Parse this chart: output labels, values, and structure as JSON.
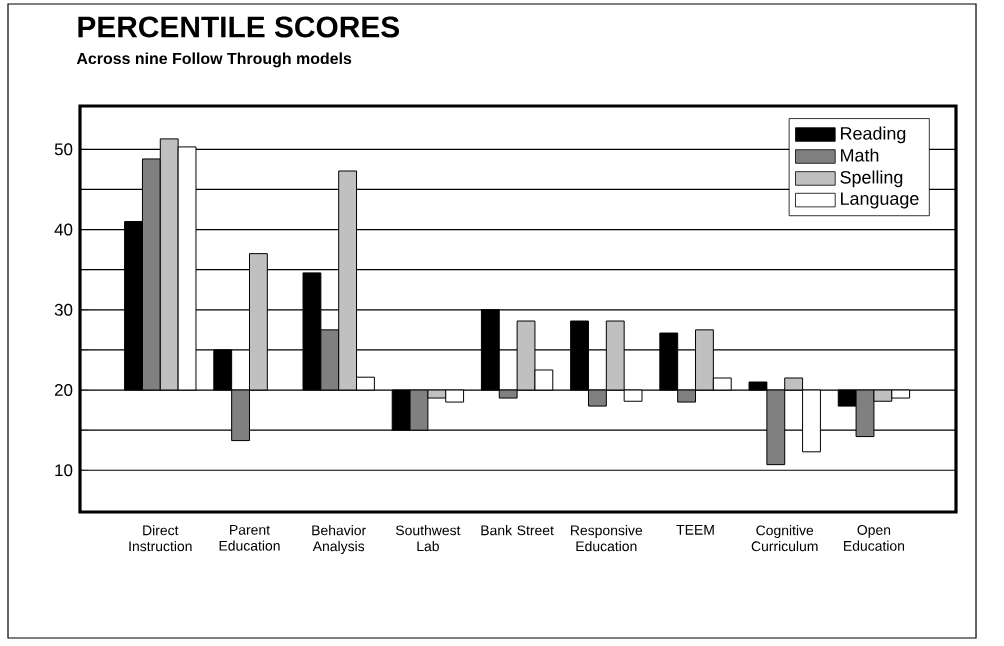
{
  "chart_data": {
    "type": "bar",
    "title": "PERCENTILE SCORES",
    "subtitle": "Across nine Follow Through models",
    "categories": [
      "Direct Instruction",
      "Parent Education",
      "Behavior Analysis",
      "Southwest Lab",
      "Bank Street",
      "Responsive Education",
      "TEEM",
      "Cognitive Curriculum",
      "Open Education"
    ],
    "series": [
      {
        "name": "Reading",
        "color": "#000000",
        "base": [
          20,
          20,
          20,
          20,
          20,
          20,
          20,
          20,
          20
        ],
        "values": [
          21,
          5,
          14.6,
          -5,
          10,
          8.6,
          7.1,
          1,
          -2
        ]
      },
      {
        "name": "Math",
        "color": "#808080",
        "base": [
          20,
          20,
          20,
          20,
          20,
          20,
          20,
          20,
          20
        ],
        "values": [
          28.8,
          -6.3,
          7.5,
          -5,
          -1,
          -2,
          -1.5,
          -9.3,
          -5.8
        ]
      },
      {
        "name": "Spelling",
        "color": "#c0c0c0",
        "base": [
          20,
          20,
          20,
          20,
          20,
          20,
          20,
          20,
          20
        ],
        "values": [
          31.3,
          17,
          27.3,
          -1,
          8.6,
          8.6,
          7.5,
          1.5,
          -1.4
        ]
      },
      {
        "name": "Language",
        "color": "#ffffff",
        "base": [
          20,
          null,
          20,
          20,
          20,
          20,
          20,
          20,
          20
        ],
        "values": [
          30.3,
          null,
          1.6,
          -1.5,
          2.5,
          -1.4,
          1.5,
          -7.7,
          -1
        ]
      }
    ],
    "ylim": [
      4.8,
      55.4
    ],
    "yticks": [
      10,
      {
        "value": 15,
        "label": null
      },
      20,
      {
        "value": 25,
        "label": null
      },
      30,
      {
        "value": 35,
        "label": null
      },
      40,
      {
        "value": 45,
        "label": null
      },
      50
    ],
    "grid": "y",
    "legend": "top right"
  }
}
